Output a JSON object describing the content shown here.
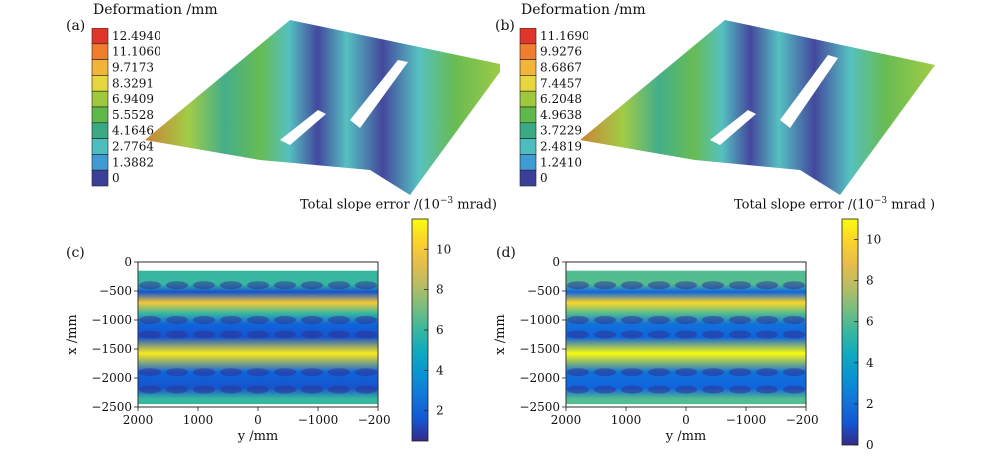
{
  "chart_data": [
    {
      "panel": "(a)",
      "type": "surface",
      "colorbar_title": "Deformation /mm",
      "colorbar_ticks": [
        "12.4940",
        "11.1060",
        "9.7173",
        "8.3291",
        "6.9409",
        "5.5528",
        "4.1646",
        "2.7764",
        "1.3882",
        "0"
      ],
      "colorbar_colors": [
        "#e0352b",
        "#f07e2c",
        "#f2b53a",
        "#e8d63e",
        "#9ec93c",
        "#5fb84a",
        "#3aaa84",
        "#4dbdbd",
        "#3f9bd3",
        "#3a3f98"
      ]
    },
    {
      "panel": "(b)",
      "type": "surface",
      "colorbar_title": "Deformation /mm",
      "colorbar_ticks": [
        "11.1690",
        "9.9276",
        "8.6867",
        "7.4457",
        "6.2048",
        "4.9638",
        "3.7229",
        "2.4819",
        "1.2410",
        "0"
      ],
      "colorbar_colors": [
        "#e0352b",
        "#f07e2c",
        "#f2b53a",
        "#e8d63e",
        "#9ec93c",
        "#5fb84a",
        "#3aaa84",
        "#4dbdbd",
        "#3f9bd3",
        "#3a3f98"
      ]
    },
    {
      "panel": "(c)",
      "type": "heatmap",
      "colorbar_title": "Total slope error /(10",
      "colorbar_title_sup": "−3",
      "colorbar_title_tail": " mrad)",
      "colorbar_ticks": [
        "10",
        "8",
        "6",
        "4",
        "2"
      ],
      "colorbar_range": [
        0.5,
        11.5
      ],
      "xlabel": "y /mm",
      "ylabel": "x /mm",
      "xticks": [
        "2000",
        "1000",
        "0",
        "−1000",
        "−2000"
      ],
      "yticks": [
        "0",
        "−500",
        "−1000",
        "−1500",
        "−2000",
        "−2500"
      ],
      "bands": [
        {
          "y": -250,
          "value": 6
        },
        {
          "y": -400,
          "value": 1.5
        },
        {
          "y": -600,
          "value": 10
        },
        {
          "y": -800,
          "value": 6
        },
        {
          "y": -1000,
          "value": 2
        },
        {
          "y": -1250,
          "value": 1.5
        },
        {
          "y": -1550,
          "value": 11
        },
        {
          "y": -1900,
          "value": 2
        },
        {
          "y": -2200,
          "value": 1.5
        },
        {
          "y": -2400,
          "value": 6
        }
      ]
    },
    {
      "panel": "(d)",
      "type": "heatmap",
      "colorbar_title": "Total slope error /(10",
      "colorbar_title_sup": "−3",
      "colorbar_title_tail": " mrad )",
      "colorbar_ticks": [
        "10",
        "8",
        "6",
        "4",
        "2",
        "0"
      ],
      "colorbar_range": [
        0,
        11
      ],
      "xlabel": "y /mm",
      "ylabel": "x /mm",
      "xticks": [
        "2000",
        "1000",
        "0",
        "−1000",
        "−2000"
      ],
      "yticks": [
        "0",
        "−500",
        "−1000",
        "−1500",
        "−2000",
        "−2500"
      ],
      "bands": [
        {
          "y": -250,
          "value": 6
        },
        {
          "y": -400,
          "value": 1.5
        },
        {
          "y": -600,
          "value": 10
        },
        {
          "y": -800,
          "value": 6
        },
        {
          "y": -1000,
          "value": 2
        },
        {
          "y": -1250,
          "value": 1.5
        },
        {
          "y": -1550,
          "value": 11
        },
        {
          "y": -1900,
          "value": 2
        },
        {
          "y": -2200,
          "value": 1.5
        },
        {
          "y": -2400,
          "value": 6
        }
      ]
    }
  ]
}
